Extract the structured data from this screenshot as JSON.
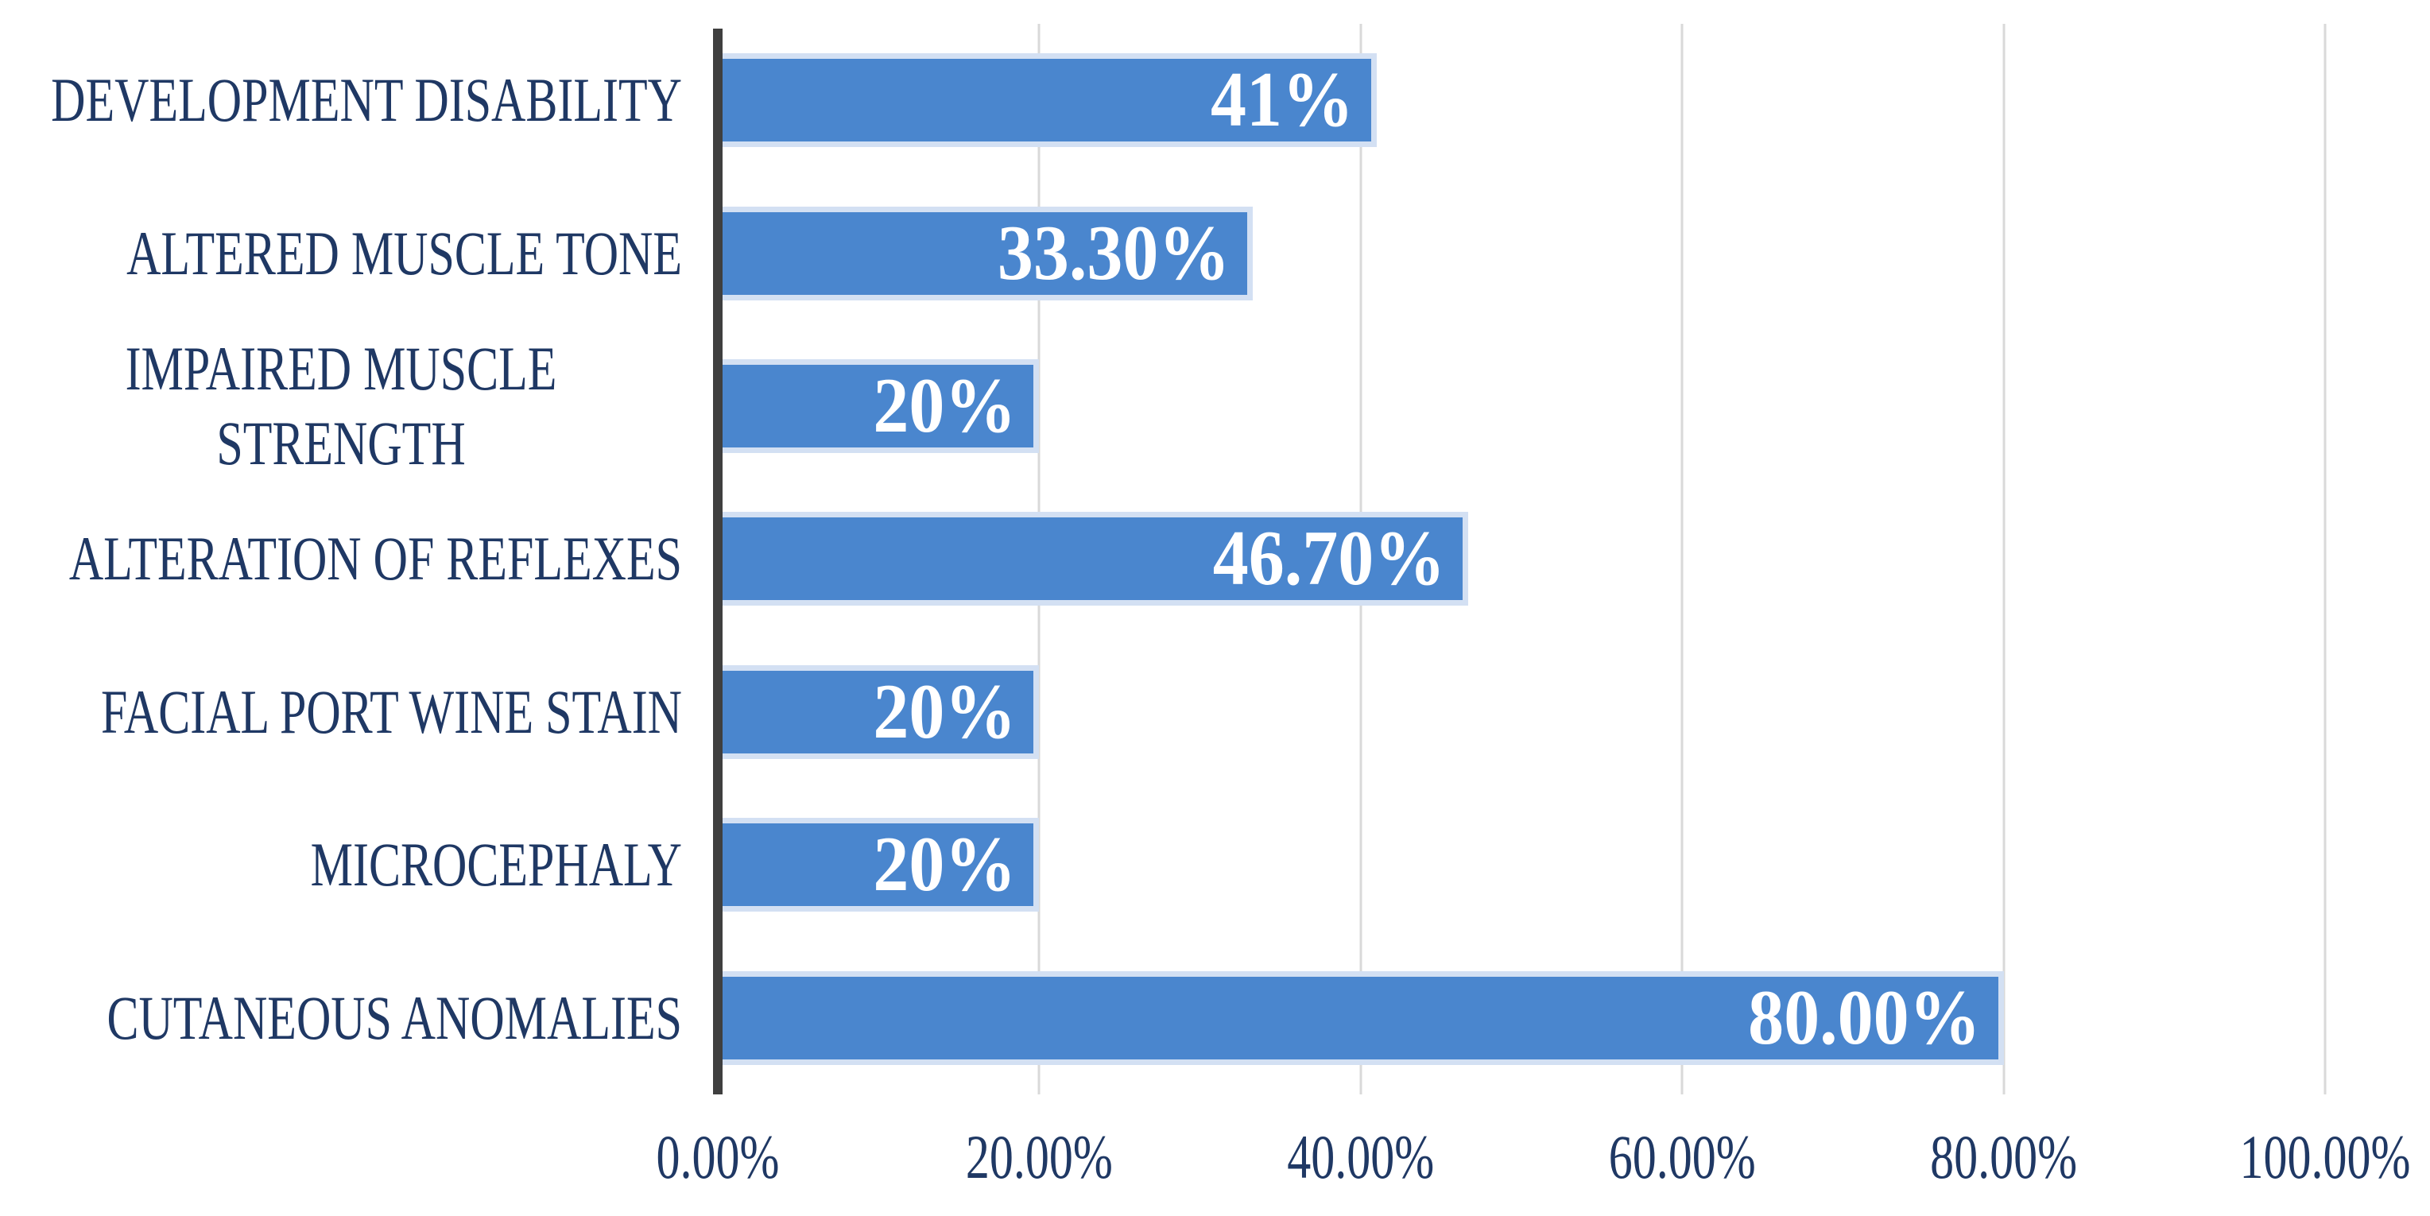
{
  "chart_data": {
    "type": "bar",
    "orientation": "horizontal",
    "title": "",
    "categories": [
      "DEVELOPMENT DISABILITY",
      "ALTERED MUSCLE TONE",
      "IMPAIRED MUSCLE STRENGTH",
      "ALTERATION OF REFLEXES",
      "FACIAL PORT WINE STAIN",
      "MICROCEPHALY",
      "CUTANEOUS ANOMALIES"
    ],
    "values": [
      41,
      33.3,
      20,
      46.7,
      20,
      20,
      80
    ],
    "value_labels": [
      "41%",
      "33.30%",
      "20%",
      "46.70%",
      "20%",
      "20%",
      "80.00%"
    ],
    "value_label_position": "inside-end",
    "x_tick_values": [
      0,
      20,
      40,
      60,
      80,
      100
    ],
    "x_tick_labels": [
      "0.00%",
      "20.00%",
      "40.00%",
      "60.00%",
      "80.00%",
      "100.00%"
    ],
    "xlim": [
      0,
      100
    ],
    "grid": true,
    "legend": false,
    "colors": {
      "bar_fill": "#4A86CE",
      "bar_border": "#D3E0F3",
      "axis_line": "#3F3F3F",
      "gridline": "#D9D9D9",
      "category_text": "#1F3864",
      "value_text": "#FFFFFF",
      "background": "#FFFFFF"
    }
  }
}
